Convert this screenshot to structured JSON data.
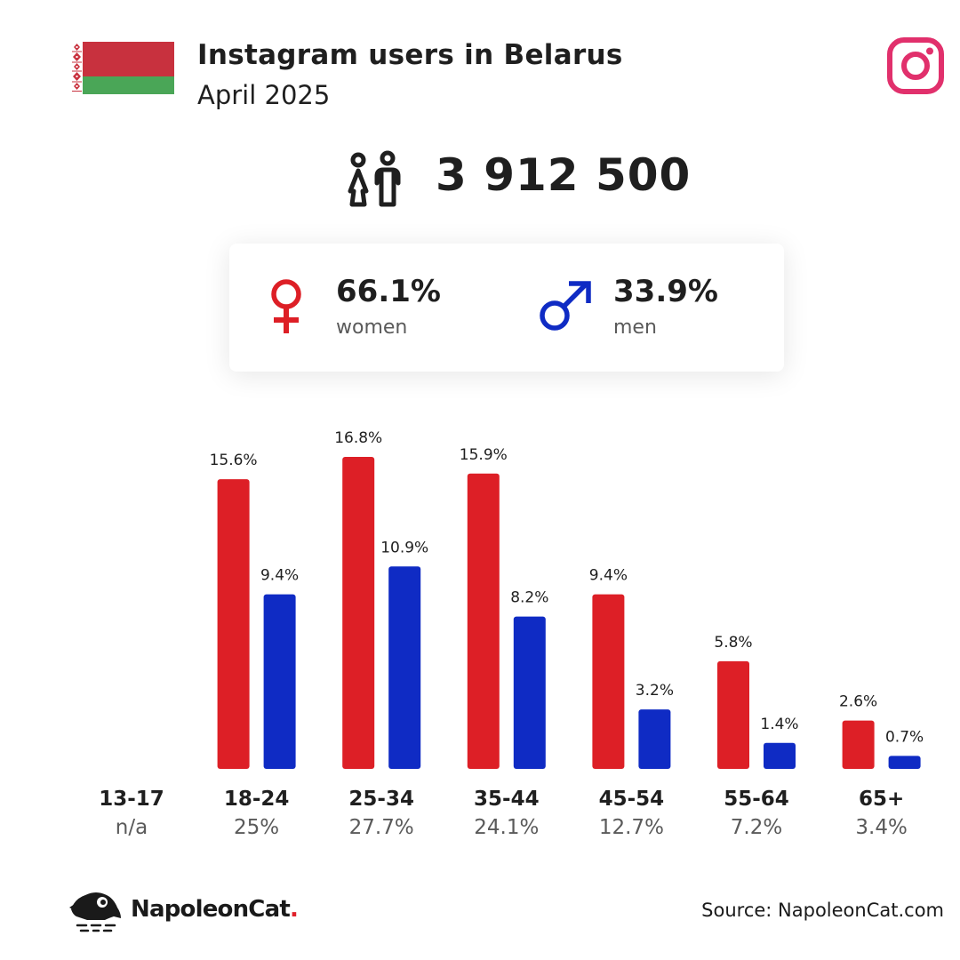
{
  "header": {
    "title": "Instagram users in Belarus",
    "date": "April 2025"
  },
  "total_users": "3 912 500",
  "gender": {
    "women": {
      "value": "66.1%",
      "label": "women"
    },
    "men": {
      "value": "33.9%",
      "label": "men"
    }
  },
  "colors": {
    "women": "#dd1f26",
    "men": "#0f2bc4",
    "flag_red": "#c8313e",
    "flag_green": "#4aa657",
    "instagram": "#e1306c"
  },
  "chart_data": {
    "type": "bar",
    "categories": [
      "13-17",
      "18-24",
      "25-34",
      "35-44",
      "45-54",
      "55-64",
      "65+"
    ],
    "category_totals": [
      "n/a",
      "25%",
      "27.7%",
      "24.1%",
      "12.7%",
      "7.2%",
      "3.4%"
    ],
    "series": [
      {
        "name": "women",
        "values": [
          null,
          15.6,
          16.8,
          15.9,
          9.4,
          5.8,
          2.6
        ],
        "labels": [
          "",
          "15.6%",
          "16.8%",
          "15.9%",
          "9.4%",
          "5.8%",
          "2.6%"
        ]
      },
      {
        "name": "men",
        "values": [
          null,
          9.4,
          10.9,
          8.2,
          3.2,
          1.4,
          0.7
        ],
        "labels": [
          "",
          "9.4%",
          "10.9%",
          "8.2%",
          "3.2%",
          "1.4%",
          "0.7%"
        ]
      }
    ],
    "ylim": [
      0,
      16.8
    ],
    "grid": false,
    "legend": "none"
  },
  "footer": {
    "brand_name": "NapoleonCat",
    "brand_dot": ".",
    "source": "Source: NapoleonCat.com"
  }
}
